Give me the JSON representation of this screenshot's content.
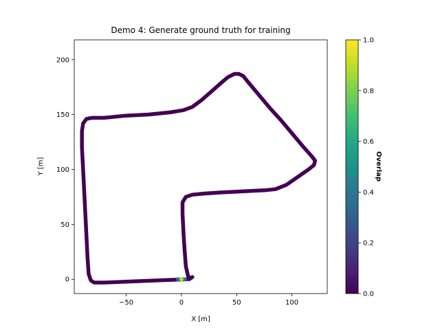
{
  "chart_data": {
    "type": "scatter",
    "title": "Demo 4: Generate ground truth for training",
    "xlabel": "X [m]",
    "ylabel": "Y [m]",
    "xlim": [
      -97,
      132
    ],
    "ylim": [
      -13,
      218
    ],
    "xticks": [
      -50,
      0,
      50,
      100
    ],
    "yticks": [
      0,
      50,
      100,
      150,
      200
    ],
    "grid": false,
    "trajectory": {
      "color": "#440154",
      "points": [
        [
          5,
          0
        ],
        [
          -20,
          -1
        ],
        [
          -45,
          -2
        ],
        [
          -70,
          -3
        ],
        [
          -79,
          -3
        ],
        [
          -82,
          -1
        ],
        [
          -84,
          5
        ],
        [
          -85,
          20
        ],
        [
          -86,
          40
        ],
        [
          -87,
          60
        ],
        [
          -88,
          80
        ],
        [
          -89,
          100
        ],
        [
          -90,
          120
        ],
        [
          -90,
          135
        ],
        [
          -89,
          142
        ],
        [
          -86,
          146
        ],
        [
          -81,
          147
        ],
        [
          -70,
          147
        ],
        [
          -50,
          149
        ],
        [
          -30,
          150
        ],
        [
          -10,
          152
        ],
        [
          2,
          154
        ],
        [
          10,
          157
        ],
        [
          18,
          163
        ],
        [
          26,
          170
        ],
        [
          35,
          178
        ],
        [
          42,
          184
        ],
        [
          48,
          187
        ],
        [
          52,
          187
        ],
        [
          56,
          185
        ],
        [
          60,
          180
        ],
        [
          70,
          168
        ],
        [
          80,
          156
        ],
        [
          90,
          145
        ],
        [
          100,
          133
        ],
        [
          110,
          121
        ],
        [
          118,
          112
        ],
        [
          121,
          108
        ],
        [
          120,
          104
        ],
        [
          115,
          100
        ],
        [
          105,
          93
        ],
        [
          95,
          86
        ],
        [
          85,
          82
        ],
        [
          75,
          81
        ],
        [
          55,
          80
        ],
        [
          35,
          79
        ],
        [
          20,
          78
        ],
        [
          10,
          77
        ],
        [
          4,
          75
        ],
        [
          1,
          70
        ],
        [
          1,
          60
        ],
        [
          2,
          40
        ],
        [
          3,
          25
        ],
        [
          4,
          12
        ],
        [
          6,
          3
        ],
        [
          8,
          1
        ],
        [
          10,
          2
        ],
        [
          7,
          0
        ]
      ]
    },
    "overlap_points": [
      {
        "x": 0,
        "y": 0,
        "value": 0.85
      },
      {
        "x": 3,
        "y": 0,
        "value": 0.4
      },
      {
        "x": -3,
        "y": 0,
        "value": 0.35
      }
    ],
    "colorbar": {
      "label": "Overlap",
      "colormap": "viridis",
      "range": [
        0,
        1
      ],
      "ticks": [
        "0.0",
        "0.2",
        "0.4",
        "0.6",
        "0.8",
        "1.0"
      ]
    }
  }
}
